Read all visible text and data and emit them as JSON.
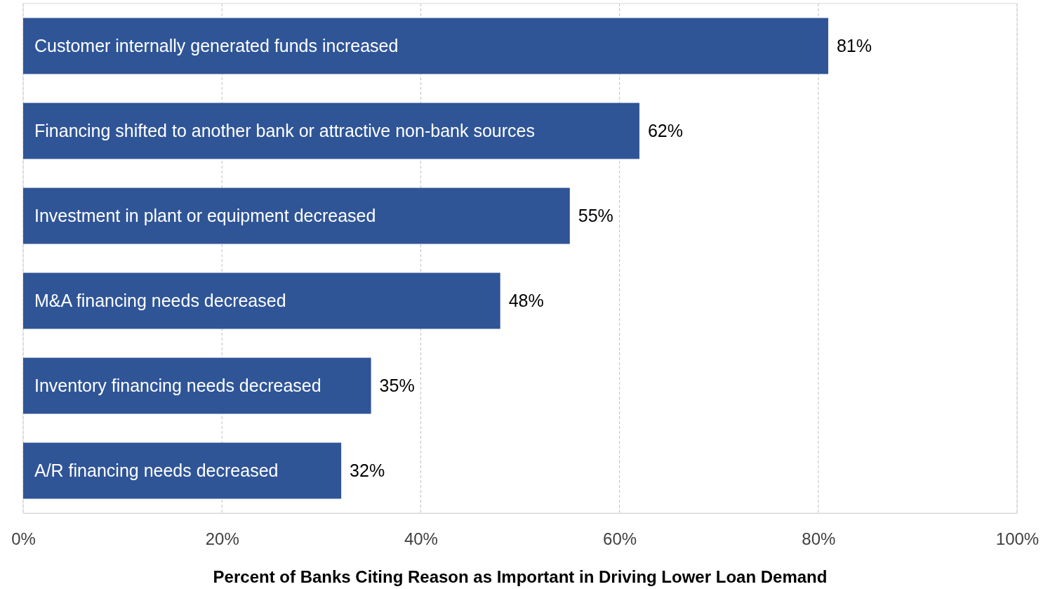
{
  "chart_data": {
    "type": "bar",
    "orientation": "horizontal",
    "xlabel": "Percent of Banks Citing Reason as Important in Driving Lower Loan Demand",
    "categories": [
      "Customer internally generated funds increased",
      "Financing shifted to another bank or attractive non-bank sources",
      "Investment in plant or equipment decreased",
      "M&A financing needs decreased",
      "Inventory financing needs decreased",
      "A/R financing needs decreased"
    ],
    "values": [
      81,
      62,
      55,
      48,
      35,
      32
    ],
    "value_labels": [
      "81%",
      "62%",
      "55%",
      "48%",
      "35%",
      "32%"
    ],
    "color": "#2f5597",
    "xlim": [
      0,
      100
    ],
    "xticks": [
      {
        "value": 0,
        "label": "0%"
      },
      {
        "value": 20,
        "label": "20%"
      },
      {
        "value": 40,
        "label": "40%"
      },
      {
        "value": 60,
        "label": "60%"
      },
      {
        "value": 80,
        "label": "80%"
      },
      {
        "value": 100,
        "label": "100%"
      }
    ],
    "grid": "x",
    "line_style": "dashed"
  }
}
